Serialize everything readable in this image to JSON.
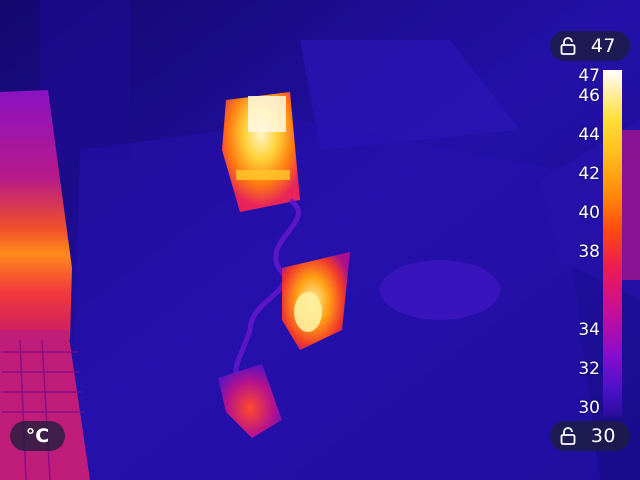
{
  "scale": {
    "max_lock_value": "47",
    "min_lock_value": "30",
    "unit": "°C",
    "ticks": [
      "47",
      "46",
      "44",
      "42",
      "40",
      "38",
      "34",
      "32",
      "30"
    ]
  },
  "icons": {
    "lock": "lock-icon"
  },
  "colors": {
    "background_cold": "#1a0c8a",
    "hot_white": "#ffffff",
    "hot_yellow": "#ffe03a",
    "hot_orange": "#ff8a0a",
    "warm_magenta": "#c40f9a",
    "cool_violet": "#4a12c8"
  }
}
